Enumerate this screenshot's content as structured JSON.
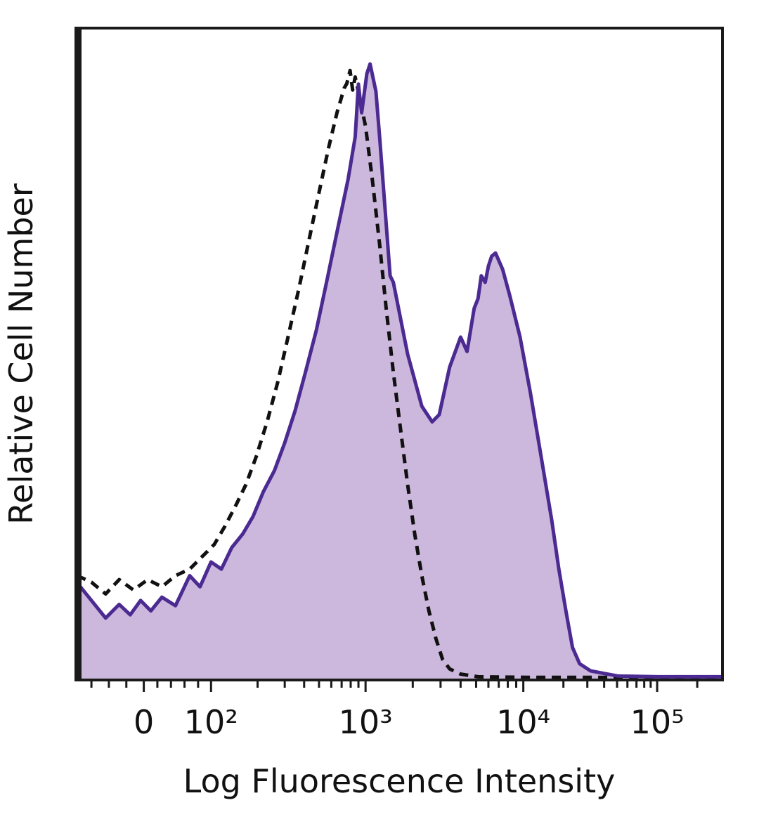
{
  "figure": {
    "background": "#ffffff"
  },
  "chart_data": {
    "type": "area",
    "subtype": "flow-cytometry-histogram-overlay",
    "title": "",
    "xlabel": "Log Fluorescence Intensity",
    "ylabel": "Relative Cell Number",
    "x_axis": {
      "scale": "biexponential (linear near 0, then log decades)",
      "ticks": [
        {
          "label": "0",
          "u": 0.105
        },
        {
          "label": "10²",
          "u": 0.209
        },
        {
          "label": "10³",
          "u": 0.448
        },
        {
          "label": "10⁴",
          "u": 0.692
        },
        {
          "label": "10⁵",
          "u": 0.899
        }
      ],
      "minor_ticks": [
        0.024,
        0.051,
        0.078,
        0.126,
        0.147,
        0.168,
        0.189,
        0.281,
        0.323,
        0.353,
        0.376,
        0.395,
        0.411,
        0.425,
        0.437,
        0.521,
        0.564,
        0.595,
        0.619,
        0.638,
        0.654,
        0.668,
        0.681,
        0.754,
        0.791,
        0.817,
        0.837,
        0.853,
        0.867,
        0.879,
        0.889,
        0.961
      ],
      "range_note": "u = normalized position across plot width, 0 = left frame, 1 = right frame"
    },
    "y_axis": {
      "tick_labels": [],
      "range_note": "unlabeled axis; point heights given as 0-100 relative cell number"
    },
    "colors": {
      "solid_stroke": "#4b2a91",
      "fill": "#c9b4db",
      "dashed_stroke": "#111111",
      "frame": "#1a1a1a"
    },
    "legend": "none shown",
    "series": [
      {
        "name": "solid filled purple curve (bimodal)",
        "style": "solid",
        "filled": true,
        "points": [
          [
            0.002,
            14.9
          ],
          [
            0.024,
            12.2
          ],
          [
            0.046,
            9.5
          ],
          [
            0.067,
            11.6
          ],
          [
            0.084,
            10
          ],
          [
            0.1,
            12.2
          ],
          [
            0.116,
            10.6
          ],
          [
            0.133,
            12.7
          ],
          [
            0.154,
            11.4
          ],
          [
            0.176,
            16
          ],
          [
            0.192,
            14.3
          ],
          [
            0.209,
            18.1
          ],
          [
            0.225,
            17
          ],
          [
            0.241,
            20.3
          ],
          [
            0.258,
            22.4
          ],
          [
            0.274,
            25.1
          ],
          [
            0.29,
            28.9
          ],
          [
            0.307,
            32.1
          ],
          [
            0.323,
            36.4
          ],
          [
            0.339,
            41.3
          ],
          [
            0.355,
            47.2
          ],
          [
            0.372,
            53.7
          ],
          [
            0.388,
            61.2
          ],
          [
            0.404,
            68.8
          ],
          [
            0.421,
            76.8
          ],
          [
            0.432,
            83.3
          ],
          [
            0.437,
            91.4
          ],
          [
            0.442,
            87
          ],
          [
            0.45,
            93
          ],
          [
            0.455,
            94.5
          ],
          [
            0.464,
            90.3
          ],
          [
            0.47,
            83
          ],
          [
            0.486,
            62
          ],
          [
            0.491,
            61
          ],
          [
            0.513,
            50
          ],
          [
            0.535,
            42
          ],
          [
            0.551,
            39.6
          ],
          [
            0.562,
            40.7
          ],
          [
            0.578,
            48
          ],
          [
            0.595,
            52.6
          ],
          [
            0.605,
            50.4
          ],
          [
            0.616,
            57
          ],
          [
            0.622,
            58.5
          ],
          [
            0.627,
            62
          ],
          [
            0.633,
            61
          ],
          [
            0.638,
            63.5
          ],
          [
            0.643,
            65
          ],
          [
            0.649,
            65.5
          ],
          [
            0.66,
            63
          ],
          [
            0.671,
            59
          ],
          [
            0.687,
            52.6
          ],
          [
            0.703,
            44
          ],
          [
            0.72,
            34
          ],
          [
            0.736,
            24.5
          ],
          [
            0.747,
            17
          ],
          [
            0.758,
            10.5
          ],
          [
            0.768,
            5
          ],
          [
            0.779,
            2.5
          ],
          [
            0.796,
            1.4
          ],
          [
            0.817,
            1
          ],
          [
            0.839,
            0.6
          ],
          [
            0.9,
            0.5
          ],
          [
            0.96,
            0.5
          ],
          [
            1.0,
            0.5
          ]
        ]
      },
      {
        "name": "dashed black outline curve (unimodal)",
        "style": "dashed",
        "filled": false,
        "points": [
          [
            0.002,
            16
          ],
          [
            0.024,
            15
          ],
          [
            0.046,
            13.2
          ],
          [
            0.067,
            15.4
          ],
          [
            0.089,
            13.8
          ],
          [
            0.111,
            15.4
          ],
          [
            0.133,
            14.3
          ],
          [
            0.154,
            16
          ],
          [
            0.176,
            17
          ],
          [
            0.198,
            19.2
          ],
          [
            0.214,
            20.8
          ],
          [
            0.23,
            23.5
          ],
          [
            0.247,
            26.7
          ],
          [
            0.263,
            30
          ],
          [
            0.279,
            34.3
          ],
          [
            0.296,
            39.7
          ],
          [
            0.312,
            45.6
          ],
          [
            0.328,
            52.6
          ],
          [
            0.345,
            60.1
          ],
          [
            0.361,
            67.7
          ],
          [
            0.377,
            75.2
          ],
          [
            0.391,
            81.7
          ],
          [
            0.404,
            87.1
          ],
          [
            0.415,
            90.8
          ],
          [
            0.419,
            91.5
          ],
          [
            0.424,
            93.5
          ],
          [
            0.428,
            90.5
          ],
          [
            0.432,
            92.5
          ],
          [
            0.439,
            89.2
          ],
          [
            0.448,
            84.9
          ],
          [
            0.459,
            76.3
          ],
          [
            0.47,
            66.6
          ],
          [
            0.48,
            56.9
          ],
          [
            0.491,
            47.2
          ],
          [
            0.502,
            38.6
          ],
          [
            0.513,
            30
          ],
          [
            0.524,
            22.4
          ],
          [
            0.535,
            16
          ],
          [
            0.546,
            10.6
          ],
          [
            0.557,
            6.3
          ],
          [
            0.567,
            3.2
          ],
          [
            0.578,
            1.7
          ],
          [
            0.595,
            0.9
          ],
          [
            0.622,
            0.5
          ],
          [
            0.7,
            0.4
          ],
          [
            0.8,
            0.4
          ],
          [
            0.9,
            0.4
          ],
          [
            1.0,
            0.4
          ]
        ]
      }
    ]
  }
}
